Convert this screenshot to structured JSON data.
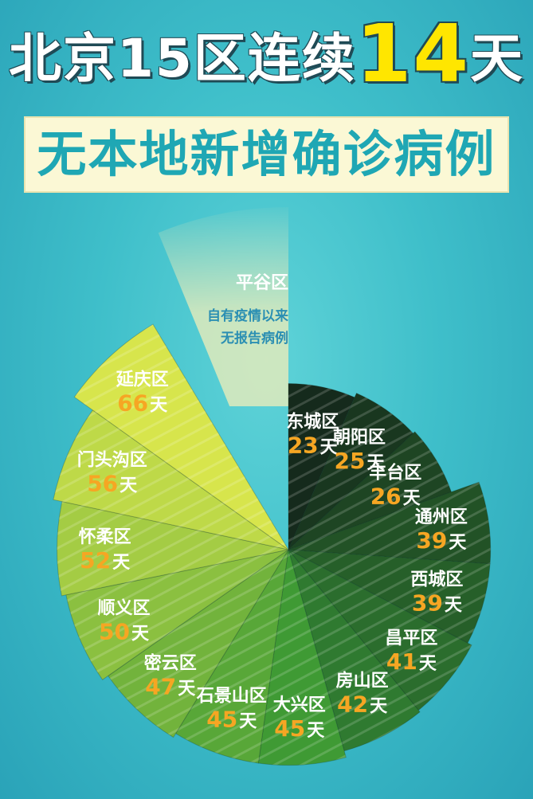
{
  "title": {
    "prefix": "北京15区连续",
    "highlight": "14",
    "suffix": "天",
    "subtitle": "无本地新增确诊病例"
  },
  "colors": {
    "pinggu": "#f1edb8",
    "dark_start": "#152a1c",
    "dark_end": "#2f7a30",
    "light_start": "#3f9a34",
    "light_end": "#d7e54c",
    "label": "#ffffff",
    "value": "#f6a623",
    "note": "#2b8fb3"
  },
  "chart_data": {
    "type": "pie",
    "unit": "天",
    "special": {
      "category": "平谷区",
      "note_lines": [
        "自有疫情以来",
        "无报告病例"
      ]
    },
    "categories": [
      "东城区",
      "朝阳区",
      "丰台区",
      "通州区",
      "西城区",
      "昌平区",
      "房山区",
      "大兴区",
      "石景山区",
      "密云区",
      "顺义区",
      "怀柔区",
      "门头沟区",
      "延庆区"
    ],
    "values": [
      23,
      25,
      26,
      39,
      39,
      41,
      42,
      45,
      45,
      47,
      50,
      52,
      56,
      66
    ]
  }
}
